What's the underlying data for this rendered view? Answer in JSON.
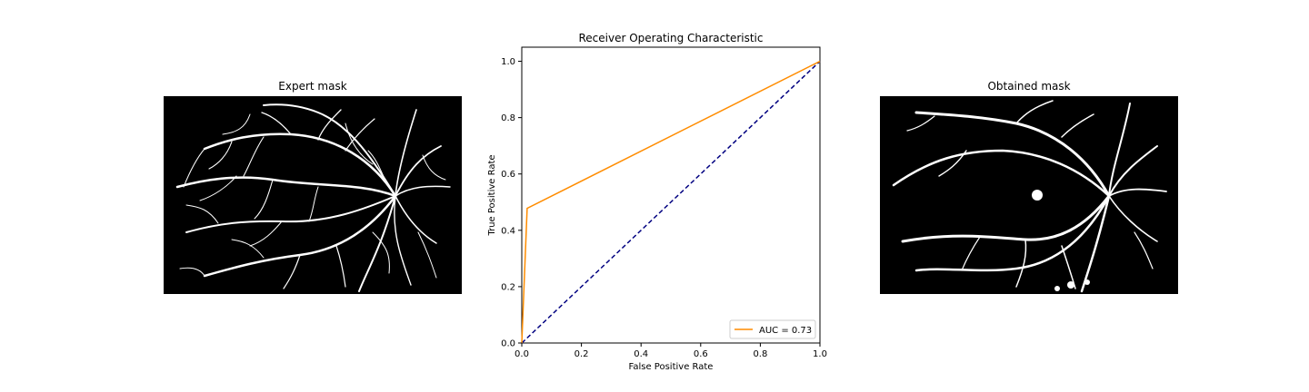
{
  "left_panel": {
    "title": "Expert mask"
  },
  "right_panel": {
    "title": "Obtained mask"
  },
  "colors": {
    "roc_line": "#ff8c00",
    "chance_line": "#000080",
    "axes": "#000000"
  },
  "chart_data": {
    "type": "line",
    "title": "Receiver Operating Characteristic",
    "xlabel": "False Positive Rate",
    "ylabel": "True Positive Rate",
    "xlim": [
      0.0,
      1.0
    ],
    "ylim": [
      0.0,
      1.05
    ],
    "xticks": [
      "0.0",
      "0.2",
      "0.4",
      "0.6",
      "0.8",
      "1.0"
    ],
    "yticks": [
      "0.0",
      "0.2",
      "0.4",
      "0.6",
      "0.8",
      "1.0"
    ],
    "grid": false,
    "legend_position": "lower right",
    "series": [
      {
        "name": "AUC = 0.73",
        "style": "solid",
        "color": "#ff8c00",
        "x": [
          0.0,
          0.018,
          1.0
        ],
        "y": [
          0.0,
          0.478,
          1.0
        ]
      },
      {
        "style": "dashed",
        "color": "#000080",
        "x": [
          0.0,
          1.0
        ],
        "y": [
          0.0,
          1.0
        ]
      }
    ]
  }
}
